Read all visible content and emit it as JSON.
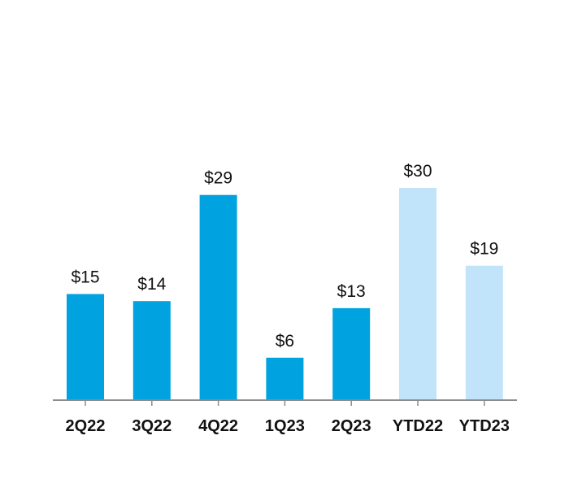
{
  "chart_data": {
    "type": "bar",
    "title": "",
    "xlabel": "",
    "ylabel": "",
    "ylim": [
      0,
      30
    ],
    "grid": false,
    "categories": [
      "2Q22",
      "3Q22",
      "4Q22",
      "1Q23",
      "2Q23",
      "YTD22",
      "YTD23"
    ],
    "values": [
      15,
      14,
      29,
      6,
      13,
      30,
      19
    ],
    "value_labels": [
      "$15",
      "$14",
      "$29",
      "$6",
      "$13",
      "$30",
      "$19"
    ],
    "bar_colors": [
      "#00a3e0",
      "#00a3e0",
      "#00a3e0",
      "#00a3e0",
      "#00a3e0",
      "#c2e4fa",
      "#c2e4fa"
    ],
    "axis_color": "#8c8c8c"
  }
}
